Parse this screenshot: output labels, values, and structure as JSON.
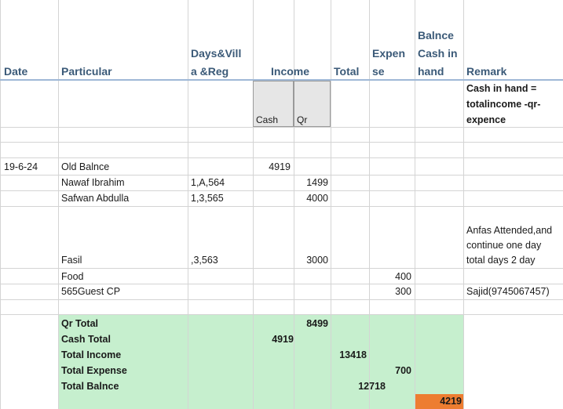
{
  "headers": {
    "date": "Date",
    "particular": "Particular",
    "days_line1": "Days&Vill",
    "days_line2": "a &Reg",
    "income": "Income",
    "total": "Total",
    "expense_line1": "Expen",
    "expense_line2": "se",
    "balance_line1": "Balnce",
    "balance_line2": "Cash in",
    "balance_line3": "hand",
    "remark": "Remark"
  },
  "subheaders": {
    "cash": "Cash",
    "qr": "Qr"
  },
  "formula_note": [
    "Cash in hand  =",
    "totalincome -qr-",
    "expence"
  ],
  "rows": [
    {
      "date": "19-6-24",
      "particular": "Old Balnce",
      "days": "",
      "cash": "4919",
      "qr": "",
      "expense": "",
      "remark": ""
    },
    {
      "date": "",
      "particular": "Nawaf Ibrahim",
      "days": "1,A,564",
      "cash": "",
      "qr": "1499",
      "expense": "",
      "remark": ""
    },
    {
      "date": "",
      "particular": "Safwan Abdulla",
      "days": "1,3,565",
      "cash": "",
      "qr": "4000",
      "expense": "",
      "remark": ""
    },
    {
      "date": "",
      "particular": "Fasil",
      "days": ",3,563",
      "cash": "",
      "qr": "3000",
      "expense": "",
      "remark": ""
    },
    {
      "date": "",
      "particular": "Food",
      "days": "",
      "cash": "",
      "qr": "",
      "expense": "400",
      "remark": ""
    },
    {
      "date": "",
      "particular": "565Guest CP",
      "days": "",
      "cash": "",
      "qr": "",
      "expense": "300",
      "remark": "Sajid(9745067457)"
    }
  ],
  "fasil_remark": [
    "Anfas Attended,and",
    "continue one day",
    "total days 2 day"
  ],
  "summary": {
    "qr_total_label": "Qr Total",
    "qr_total": "8499",
    "cash_total_label": "Cash Total",
    "cash_total": "4919",
    "total_income_label": "Total Income",
    "total_income": "13418",
    "total_expense_label": "Total Expense",
    "total_expense": "700",
    "total_balance_label": "Total Balnce",
    "total_balance": "12718",
    "cash_in_hand": "4219"
  },
  "colors": {
    "summary_fill": "#c6efce",
    "balance_fill": "#ed7d31",
    "header_text": "#3b5a78"
  }
}
